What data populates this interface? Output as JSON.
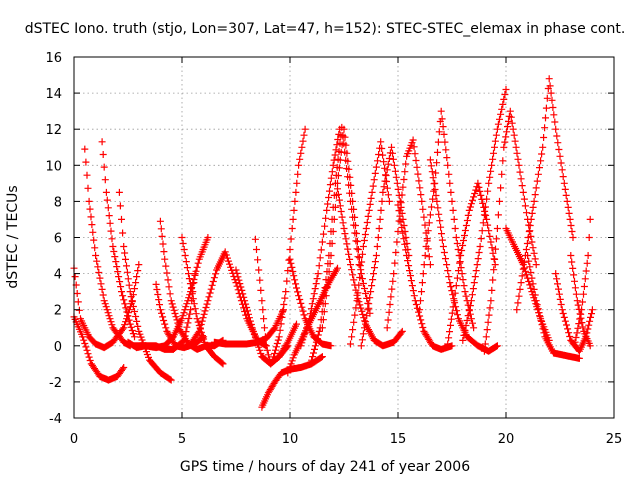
{
  "chart_data": {
    "type": "scatter",
    "title": "dSTEC Iono. truth (stjo, Lon=307, Lat=47, h=152): STEC-STEC_elemax in phase cont.",
    "xlabel": "GPS time / hours of day 241 of year 2006",
    "ylabel": "dSTEC  / TECUs",
    "xlim": [
      0,
      25
    ],
    "ylim": [
      -4,
      16
    ],
    "x_ticks": [
      0,
      5,
      10,
      15,
      20,
      25
    ],
    "y_ticks": [
      -4,
      -2,
      0,
      2,
      4,
      6,
      8,
      10,
      12,
      14,
      16
    ],
    "x_tick_labels": [
      "0",
      "5",
      "10",
      "15",
      "20",
      "25"
    ],
    "y_tick_labels": [
      "-4",
      "-2",
      "0",
      "2",
      "4",
      "6",
      "8",
      "10",
      "12",
      "14",
      "16"
    ],
    "grid": true,
    "marker": "+",
    "color": "#ff0000",
    "legend": "none",
    "series": [
      {
        "x": [
          0.0,
          0.3,
          0.7,
          1.0,
          1.4,
          1.8,
          2.3,
          2.7,
          3.0
        ],
        "y": [
          4.3,
          1.5,
          0.5,
          0.1,
          -0.1,
          0.2,
          1.0,
          2.5,
          4.5
        ]
      },
      {
        "x": [
          0.0,
          0.4,
          0.8,
          1.2,
          1.6,
          2.0,
          2.3
        ],
        "y": [
          1.6,
          0.5,
          -1.0,
          -1.7,
          -1.9,
          -1.7,
          -1.2
        ]
      },
      {
        "x": [
          0.5,
          0.7,
          1.0,
          1.4,
          1.8,
          2.3,
          2.6
        ],
        "y": [
          10.9,
          8.0,
          5.0,
          2.5,
          1.0,
          0.2,
          0.0
        ]
      },
      {
        "x": [
          1.3,
          1.5,
          1.8,
          2.2,
          2.6,
          2.8
        ],
        "y": [
          11.3,
          8.5,
          5.5,
          3.0,
          1.2,
          0.5
        ]
      },
      {
        "x": [
          2.1,
          2.3,
          2.6,
          3.0,
          3.5,
          4.0,
          4.5
        ],
        "y": [
          8.5,
          5.5,
          3.0,
          0.8,
          -0.8,
          -1.5,
          -1.9
        ]
      },
      {
        "x": [
          2.5,
          2.9,
          3.3,
          3.8,
          4.2,
          4.6,
          5.1,
          5.4,
          5.6
        ],
        "y": [
          0.2,
          -0.1,
          0.0,
          0.0,
          -0.2,
          -0.2,
          0.3,
          2.0,
          4.0
        ]
      },
      {
        "x": [
          2.8,
          3.3,
          3.8,
          4.2,
          4.6,
          5.0,
          5.4,
          5.8,
          6.2
        ],
        "y": [
          0.0,
          0.0,
          -0.1,
          0.0,
          0.5,
          1.5,
          3.0,
          4.8,
          6.0
        ]
      },
      {
        "x": [
          3.8,
          4.0,
          4.3,
          4.7,
          5.1,
          5.6,
          6.0
        ],
        "y": [
          3.4,
          2.0,
          0.8,
          0.0,
          -0.1,
          0.1,
          0.5
        ]
      },
      {
        "x": [
          4.0,
          4.2,
          4.5,
          4.9,
          5.3,
          5.7,
          6.1,
          6.5,
          6.9
        ],
        "y": [
          6.9,
          4.8,
          2.5,
          0.9,
          0.1,
          -0.2,
          0.0,
          0.0,
          0.3
        ]
      },
      {
        "x": [
          5.0,
          5.3,
          5.7,
          6.1,
          6.5,
          6.9
        ],
        "y": [
          6.0,
          4.0,
          1.5,
          0.0,
          -0.6,
          -1.0
        ]
      },
      {
        "x": [
          5.4,
          5.8,
          6.2,
          6.6,
          7.0,
          7.5,
          8.0,
          8.5,
          8.9
        ],
        "y": [
          0.1,
          0.8,
          2.5,
          4.2,
          5.2,
          3.5,
          1.5,
          0.3,
          0.0
        ]
      },
      {
        "x": [
          6.5,
          7.0,
          7.5,
          8.0,
          8.5,
          8.9,
          9.3,
          9.7
        ],
        "y": [
          0.2,
          0.1,
          0.1,
          0.1,
          0.2,
          0.4,
          1.0,
          2.0
        ]
      },
      {
        "x": [
          7.5,
          7.9,
          8.3,
          8.7,
          9.1,
          9.5,
          9.9,
          10.3
        ],
        "y": [
          4.2,
          2.5,
          0.8,
          -0.6,
          -1.0,
          -0.6,
          0.2,
          1.2
        ]
      },
      {
        "x": [
          8.4,
          8.7,
          8.9,
          9.1,
          9.5,
          9.9
        ],
        "y": [
          5.9,
          2.5,
          0.0,
          -1.0,
          -0.6,
          0.0
        ]
      },
      {
        "x": [
          8.7,
          9.0,
          9.3,
          9.6,
          10.0,
          10.5,
          11.0,
          11.5
        ],
        "y": [
          -3.4,
          -2.6,
          -2.0,
          -1.5,
          -1.3,
          -1.2,
          -1.0,
          -0.6
        ]
      },
      {
        "x": [
          9.2,
          9.5,
          9.8,
          10.1,
          10.4,
          10.7
        ],
        "y": [
          -0.8,
          0.5,
          3.0,
          6.5,
          10.0,
          12.0
        ]
      },
      {
        "x": [
          9.9,
          10.2,
          10.6,
          11.0,
          11.4,
          11.8,
          12.2
        ],
        "y": [
          -1.5,
          -0.5,
          0.5,
          1.5,
          2.5,
          3.5,
          4.3
        ]
      },
      {
        "x": [
          10.0,
          10.3,
          10.7,
          11.1,
          11.5,
          11.9
        ],
        "y": [
          4.8,
          3.2,
          1.5,
          0.5,
          0.1,
          0.0
        ]
      },
      {
        "x": [
          10.5,
          10.9,
          11.3,
          11.7,
          12.0,
          12.3
        ],
        "y": [
          0.0,
          1.5,
          4.0,
          7.5,
          10.0,
          12.0
        ]
      },
      {
        "x": [
          11.0,
          11.4,
          11.8,
          12.1,
          12.4,
          12.8,
          13.2
        ],
        "y": [
          -0.8,
          1.0,
          5.0,
          9.0,
          12.1,
          8.0,
          4.5
        ]
      },
      {
        "x": [
          11.5,
          11.9,
          12.2,
          12.5,
          12.9,
          13.3,
          13.7
        ],
        "y": [
          1.0,
          5.0,
          9.0,
          12.0,
          8.0,
          4.0,
          1.8
        ]
      },
      {
        "x": [
          12.2,
          12.5,
          12.8,
          13.1,
          13.5,
          13.9,
          14.3,
          14.8,
          15.2
        ],
        "y": [
          8.7,
          6.5,
          4.5,
          2.8,
          1.2,
          0.3,
          0.0,
          0.2,
          0.8
        ]
      },
      {
        "x": [
          12.8,
          13.1,
          13.4,
          13.8,
          14.2,
          14.6
        ],
        "y": [
          0.1,
          2.5,
          5.5,
          8.5,
          11.3,
          8.0
        ]
      },
      {
        "x": [
          13.3,
          13.6,
          14.0,
          14.3,
          14.7,
          15.1,
          15.5
        ],
        "y": [
          0.0,
          2.0,
          5.0,
          8.5,
          11.0,
          8.0,
          5.0
        ]
      },
      {
        "x": [
          14.5,
          14.8,
          15.1,
          15.4,
          15.7,
          16.1,
          16.5
        ],
        "y": [
          1.0,
          4.0,
          7.5,
          10.5,
          11.4,
          8.0,
          4.5
        ]
      },
      {
        "x": [
          15.0,
          15.4,
          15.8,
          16.2,
          16.6,
          17.0,
          17.5
        ],
        "y": [
          7.8,
          5.0,
          2.5,
          0.8,
          0.0,
          -0.2,
          0.0
        ]
      },
      {
        "x": [
          16.0,
          16.3,
          16.7,
          17.0,
          17.3,
          17.7,
          18.1,
          18.5
        ],
        "y": [
          2.0,
          5.5,
          9.0,
          13.0,
          10.0,
          6.0,
          3.0,
          1.0
        ]
      },
      {
        "x": [
          16.5,
          16.8,
          17.1,
          17.4,
          17.8,
          18.2,
          18.7,
          19.2,
          19.6
        ],
        "y": [
          10.3,
          8.0,
          5.5,
          3.5,
          1.5,
          0.5,
          0.0,
          -0.3,
          0.0
        ]
      },
      {
        "x": [
          17.3,
          17.6,
          17.9,
          18.3,
          18.7,
          19.1,
          19.5
        ],
        "y": [
          0.1,
          2.5,
          5.0,
          7.5,
          9.0,
          7.0,
          4.5
        ]
      },
      {
        "x": [
          18.0,
          18.4,
          18.8,
          19.2,
          19.6,
          20.0
        ],
        "y": [
          0.3,
          2.5,
          5.5,
          9.0,
          12.0,
          14.2
        ]
      },
      {
        "x": [
          19.0,
          19.3,
          19.6,
          19.9,
          20.2,
          20.6,
          21.0,
          21.4
        ],
        "y": [
          -0.3,
          2.5,
          6.5,
          11.0,
          13.0,
          10.0,
          7.0,
          4.5
        ]
      },
      {
        "x": [
          20.0,
          20.4,
          20.8,
          21.2,
          21.6,
          22.0
        ],
        "y": [
          6.5,
          5.5,
          4.5,
          3.0,
          1.5,
          0.3
        ]
      },
      {
        "x": [
          20.5,
          20.9,
          21.3,
          21.7,
          22.0,
          22.3,
          22.7,
          23.1
        ],
        "y": [
          2.0,
          5.0,
          8.0,
          11.0,
          14.8,
          12.0,
          9.0,
          6.0
        ]
      },
      {
        "x": [
          21.0,
          21.4,
          21.8,
          22.2,
          22.6,
          23.0,
          23.4
        ],
        "y": [
          5.0,
          2.5,
          0.5,
          -0.4,
          -0.5,
          -0.6,
          -0.7
        ]
      },
      {
        "x": [
          22.3,
          22.6,
          23.0,
          23.4,
          23.7,
          24.0
        ],
        "y": [
          4.0,
          2.0,
          0.3,
          -0.3,
          0.5,
          2.0
        ]
      },
      {
        "x": [
          23.0,
          23.3,
          23.6,
          23.9
        ],
        "y": [
          5.0,
          2.5,
          0.8,
          0.0
        ]
      },
      {
        "x": [
          23.2,
          23.5,
          23.8,
          23.9
        ],
        "y": [
          0.2,
          2.0,
          5.0,
          7.0
        ]
      }
    ]
  }
}
